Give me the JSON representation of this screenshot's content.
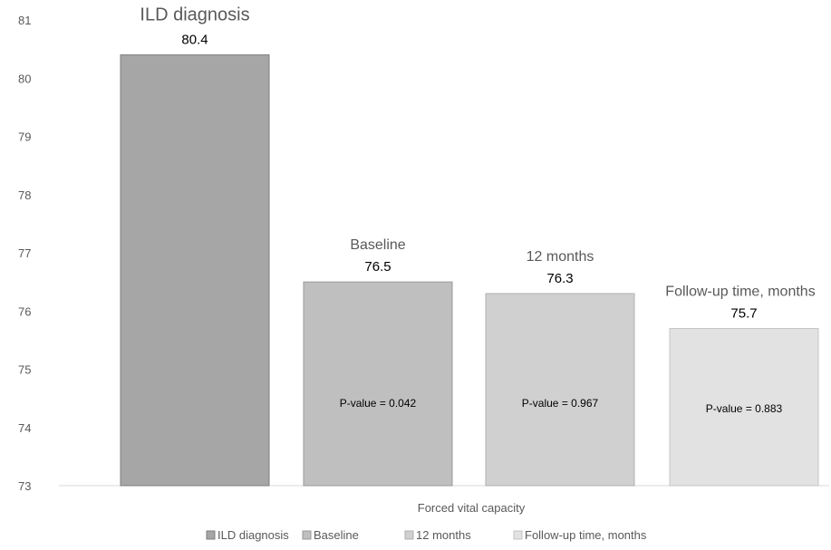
{
  "chart_data": {
    "type": "bar",
    "xlabel": "Forced vital capacity",
    "ylabel": "",
    "ylim": [
      73,
      81
    ],
    "yticks": [
      73,
      74,
      75,
      76,
      77,
      78,
      79,
      80,
      81
    ],
    "grid": false,
    "legend_position": "bottom",
    "categories": [
      "ILD diagnosis",
      "Baseline",
      "12 months",
      "Follow-up time, months"
    ],
    "values": [
      80.4,
      76.5,
      76.3,
      75.7
    ],
    "value_labels": [
      "80.4",
      "76.5",
      "76.3",
      "75.7"
    ],
    "bar_titles": [
      "ILD diagnosis",
      "Baseline",
      "12 months",
      "Follow-up time, months"
    ],
    "p_values": [
      "",
      "P-value = 0.042",
      "P-value = 0.967",
      "P-value = 0.883"
    ],
    "colors": [
      "#a6a6a6",
      "#bfbfbf",
      "#d0d0d0",
      "#e2e2e2"
    ],
    "border_colors": [
      "#7f7f7f",
      "#9a9a9a",
      "#b0b0b0",
      "#c4c4c4"
    ],
    "legend": [
      "ILD diagnosis",
      "Baseline",
      "12 months",
      "Follow-up time, months"
    ]
  }
}
